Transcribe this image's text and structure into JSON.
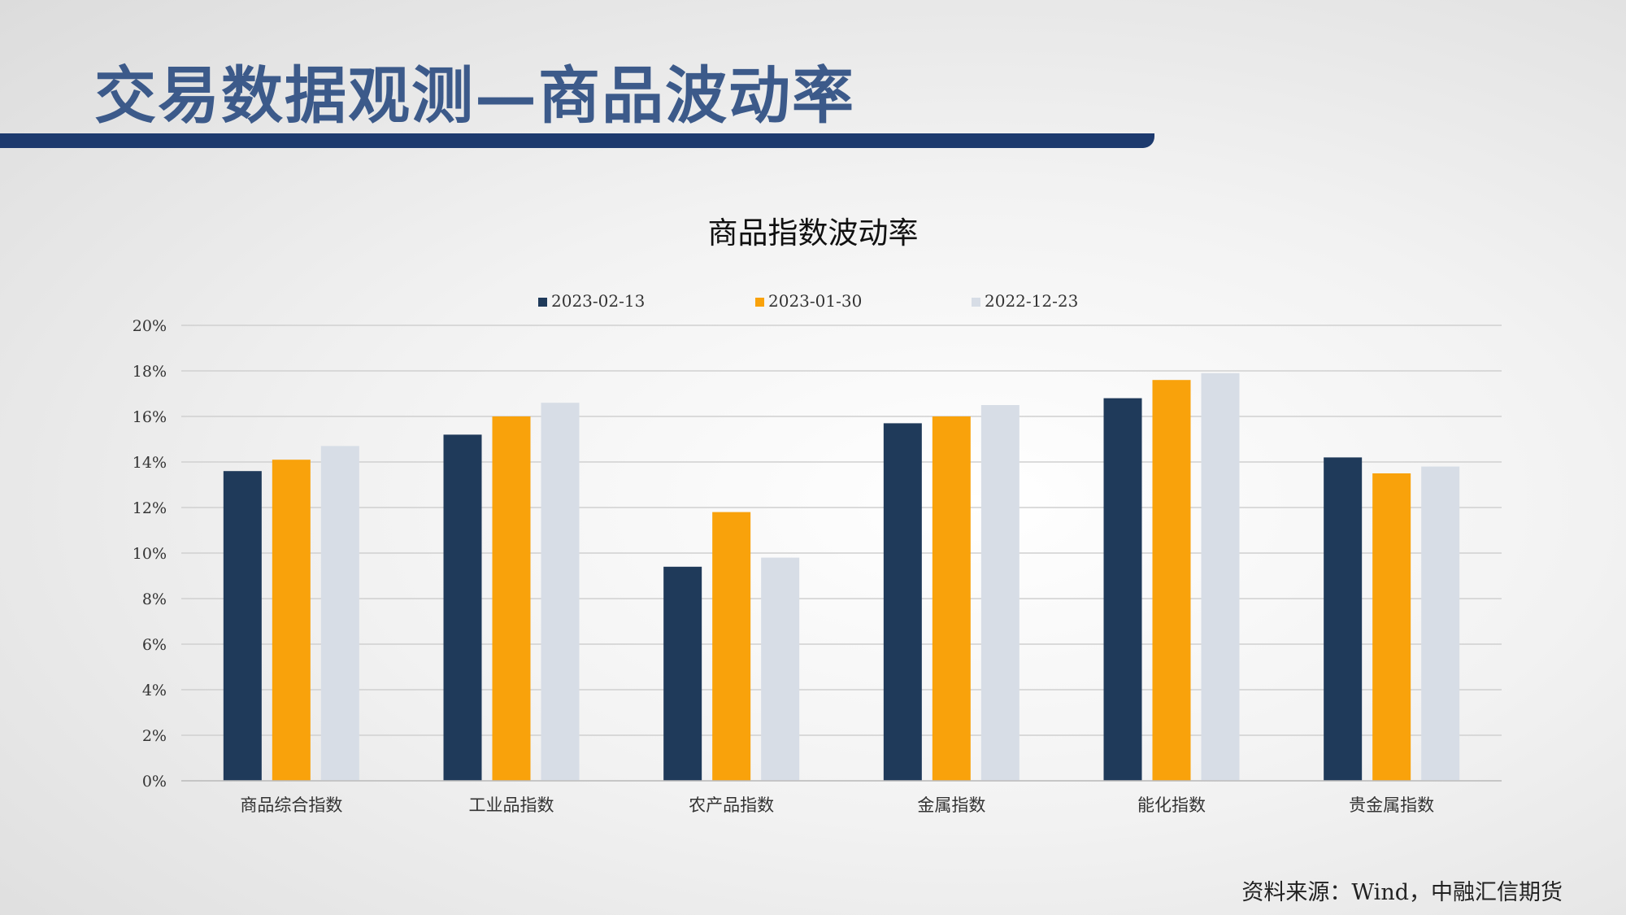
{
  "slide": {
    "title": "交易数据观测—商品波动率",
    "source": "资料来源：Wind，中融汇信期货"
  },
  "chart_data": {
    "type": "bar",
    "title": "商品指数波动率",
    "categories": [
      "商品综合指数",
      "工业品指数",
      "农产品指数",
      "金属指数",
      "能化指数",
      "贵金属指数"
    ],
    "series": [
      {
        "name": "2023-02-13",
        "color": "#1f3a5a",
        "values": [
          13.6,
          15.2,
          9.4,
          15.7,
          16.8,
          14.2
        ]
      },
      {
        "name": "2023-01-30",
        "color": "#f9a20b",
        "values": [
          14.1,
          16.0,
          11.8,
          16.0,
          17.6,
          13.5
        ]
      },
      {
        "name": "2022-12-23",
        "color": "#d7dde6",
        "values": [
          14.7,
          16.6,
          9.8,
          16.5,
          17.9,
          13.8
        ]
      }
    ],
    "ylim": [
      0,
      20
    ],
    "yticks": [
      "0%",
      "2%",
      "4%",
      "6%",
      "8%",
      "10%",
      "12%",
      "14%",
      "16%",
      "18%",
      "20%"
    ],
    "ytick_values": [
      0,
      2,
      4,
      6,
      8,
      10,
      12,
      14,
      16,
      18,
      20
    ],
    "grid": true,
    "legend_position": "top"
  }
}
